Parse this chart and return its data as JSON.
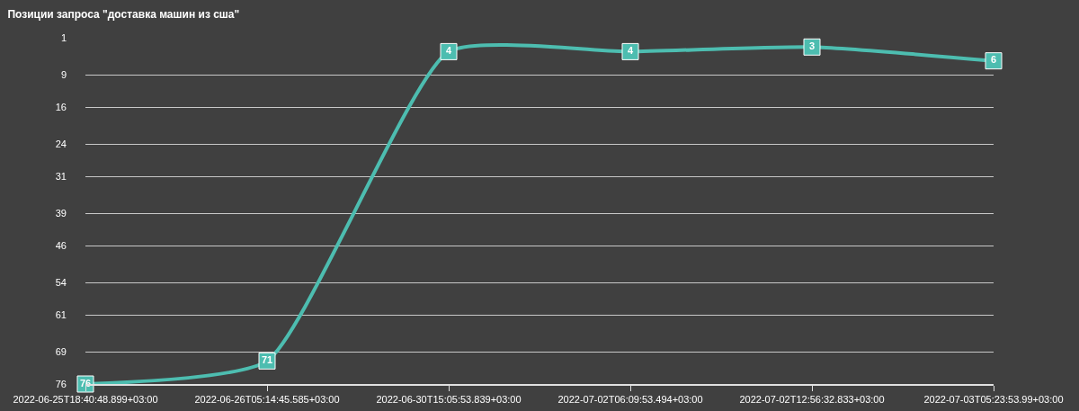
{
  "chart_data": {
    "type": "line",
    "title": "Позиции запроса \"доставка машин из сша\"",
    "categories": [
      "2022-06-25T18:40:48.899+03:00",
      "2022-06-26T05:14:45.585+03:00",
      "2022-06-30T15:05:53.839+03:00",
      "2022-07-02T06:09:53.494+03:00",
      "2022-07-02T12:56:32.833+03:00",
      "2022-07-03T05:23:53.99+03:00"
    ],
    "series": [
      {
        "color": "#4dbdb0",
        "values": [
          76,
          71,
          4,
          4,
          3,
          6
        ]
      }
    ],
    "ylim": [
      76,
      1
    ],
    "yticks": [
      1,
      9,
      16,
      24,
      31,
      39,
      46,
      54,
      61,
      69,
      76
    ],
    "grid": "y",
    "data_labels": true,
    "marker": "square",
    "line_style": "solid"
  }
}
